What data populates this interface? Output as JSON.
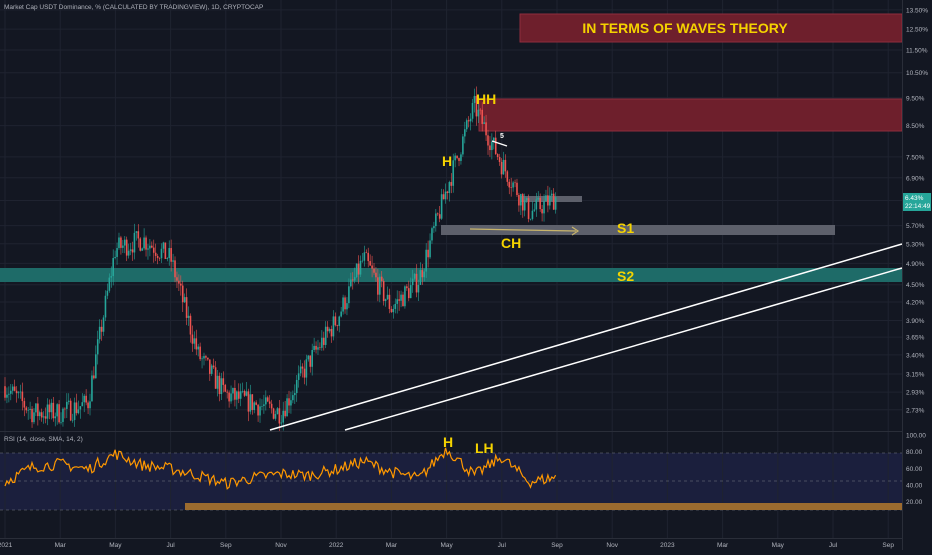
{
  "symbol_title": "Market Cap USDT Dominance, % (CALCULATED BY TRADINGVIEW), 1D, CRYPTOCAP",
  "rsi_title": "RSI (14, close, SMA, 14, 2)",
  "banner": "IN TERMS OF WAVES THEORY",
  "price_badge": {
    "value": "6.43%",
    "countdown": "22:14:49"
  },
  "colors": {
    "background": "#131722",
    "candle_up": "#26a69a",
    "candle_down": "#ef5350",
    "rsi_line": "#ff9800",
    "annotation_text": "#f5d300",
    "resistance_zone": "#6e1f2c",
    "s1_zone": "#5d606b",
    "s2_zone": "#1e6b68",
    "trend_lines": "#ffffff",
    "rsi_support_bar": "#9c6b2f"
  },
  "annotations": {
    "hh": "HH",
    "h": "H",
    "ch": "CH",
    "s1": "S1",
    "s2": "S2",
    "wave5": "5",
    "rsi_h": "H",
    "rsi_lh": "LH"
  },
  "chart_data": [
    {
      "type": "line",
      "title": "Market Cap USDT Dominance, % (CALCULATED BY TRADINGVIEW), 1D, CRYPTOCAP",
      "y_scale": "log",
      "ylim": [
        2.6,
        13.6
      ],
      "y_ticks": [
        "13.50%",
        "12.50%",
        "11.50%",
        "10.50%",
        "9.50%",
        "8.50%",
        "7.50%",
        "6.90%",
        "6.30%",
        "5.70%",
        "5.30%",
        "4.90%",
        "4.50%",
        "4.20%",
        "3.90%",
        "3.65%",
        "3.40%",
        "3.15%",
        "2.93%",
        "2.73%"
      ],
      "x_ticks": [
        "2021",
        "Mar",
        "May",
        "Jul",
        "Sep",
        "Nov",
        "2022",
        "Mar",
        "May",
        "Jul",
        "Sep",
        "Nov",
        "2023",
        "Mar",
        "May",
        "Jul",
        "Sep"
      ],
      "last_value": 6.43,
      "series": [
        {
          "x": [
            "2021-01",
            "2021-02",
            "2021-03",
            "2021-04",
            "2021-05",
            "2021-06",
            "2021-07",
            "2021-08",
            "2021-09",
            "2021-10",
            "2021-11",
            "2021-12",
            "2022-01",
            "2022-02",
            "2022-03",
            "2022-04",
            "2022-05",
            "2022-06",
            "2022-07",
            "2022-08",
            "2022-09"
          ],
          "y": [
            3.0,
            2.7,
            2.7,
            2.8,
            5.2,
            5.4,
            5.0,
            3.4,
            2.9,
            2.8,
            2.7,
            3.3,
            3.9,
            5.0,
            4.1,
            4.6,
            6.6,
            9.2,
            7.3,
            6.0,
            6.4
          ]
        }
      ],
      "zones": [
        {
          "label": "",
          "from": 8.5,
          "to": 9.5
        },
        {
          "label": "S1",
          "from": 5.7,
          "to": 5.85
        },
        {
          "label": "S2",
          "from": 4.75,
          "to": 4.95
        }
      ]
    },
    {
      "type": "line",
      "title": "RSI (14, close, SMA, 14, 2)",
      "ylim": [
        10,
        100
      ],
      "y_ticks": [
        "100.00",
        "80.00",
        "60.00",
        "40.00",
        "20.00"
      ],
      "series": [
        {
          "x": [
            "2021-01",
            "2021-02",
            "2021-03",
            "2021-04",
            "2021-05",
            "2021-06",
            "2021-07",
            "2021-08",
            "2021-09",
            "2021-10",
            "2021-11",
            "2021-12",
            "2022-01",
            "2022-02",
            "2022-03",
            "2022-04",
            "2022-05",
            "2022-06",
            "2022-07",
            "2022-08",
            "2022-09"
          ],
          "y": [
            40,
            58,
            62,
            55,
            74,
            60,
            56,
            48,
            38,
            45,
            50,
            48,
            55,
            65,
            52,
            44,
            80,
            48,
            70,
            40,
            46
          ]
        }
      ]
    }
  ]
}
